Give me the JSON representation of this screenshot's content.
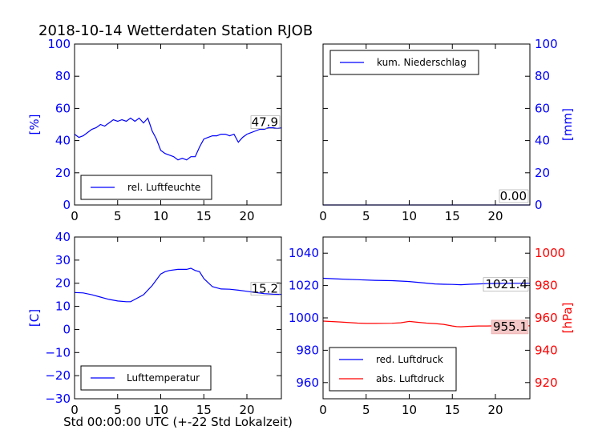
{
  "title": "2018-10-14 Wetterdaten Station RJOB",
  "xlabel": "Std 00:00:00 UTC (+-22 Std Lokalzeit)",
  "colors": {
    "blue": "#0000ff",
    "red": "#ff0000",
    "black": "#000000"
  },
  "chart_data": [
    {
      "type": "line",
      "panel": "top-left",
      "ylabel": "[%]",
      "ylabel_side": "left",
      "ylim": [
        0,
        100
      ],
      "yticks": [
        "0",
        "20",
        "40",
        "60",
        "80",
        "100"
      ],
      "xlim": [
        0,
        24
      ],
      "xticks": [
        "0",
        "5",
        "10",
        "15",
        "20"
      ],
      "legend": {
        "entries": [
          "rel. Luftfeuchte"
        ],
        "placement": "lower-left"
      },
      "last_value": "47.9",
      "series": [
        {
          "name": "rel. Luftfeuchte",
          "color": "#0000ff",
          "x": [
            0,
            0.5,
            1,
            1.5,
            2,
            2.5,
            3,
            3.5,
            4,
            4.5,
            5,
            5.5,
            6,
            6.5,
            7,
            7.5,
            8,
            8.5,
            9,
            9.5,
            10,
            10.5,
            11,
            11.5,
            12,
            12.5,
            13,
            13.5,
            14,
            14.5,
            15,
            15.5,
            16,
            16.5,
            17,
            17.5,
            18,
            18.5,
            19,
            19.5,
            20,
            20.5,
            21,
            21.5,
            22,
            22.5,
            23,
            23.5,
            24
          ],
          "values": [
            44,
            42,
            43,
            45,
            47,
            48,
            50,
            49,
            51,
            53,
            52,
            53,
            52,
            54,
            52,
            54,
            51,
            54,
            46,
            41,
            34,
            32,
            31,
            30,
            28,
            29,
            28,
            30,
            30,
            36,
            41,
            42,
            43,
            43,
            44,
            44,
            43,
            44,
            39,
            42,
            44,
            45,
            46,
            47,
            47,
            48,
            48,
            47.5,
            47.9
          ]
        }
      ]
    },
    {
      "type": "line",
      "panel": "top-right",
      "ylabel": "[mm]",
      "ylabel_side": "right",
      "ylim": [
        0,
        100
      ],
      "yticks": [
        "0",
        "20",
        "40",
        "60",
        "80",
        "100"
      ],
      "xlim": [
        0,
        24
      ],
      "xticks": [
        "0",
        "5",
        "10",
        "15",
        "20"
      ],
      "legend": {
        "entries": [
          "kum. Niederschlag"
        ],
        "placement": "upper-left"
      },
      "last_value": "0.00",
      "series": [
        {
          "name": "kum. Niederschlag",
          "color": "#0000ff",
          "x": [
            0,
            24
          ],
          "values": [
            0,
            0
          ]
        }
      ]
    },
    {
      "type": "line",
      "panel": "bottom-left",
      "ylabel": "[C]",
      "ylabel_side": "left",
      "ylim": [
        -30,
        40
      ],
      "yticks": [
        "−30",
        "−20",
        "−10",
        "0",
        "10",
        "20",
        "30",
        "40"
      ],
      "xlim": [
        0,
        24
      ],
      "xticks": [
        "0",
        "5",
        "10",
        "15",
        "20"
      ],
      "legend": {
        "entries": [
          "Lufttemperatur"
        ],
        "placement": "lower-left"
      },
      "last_value": "15.2",
      "series": [
        {
          "name": "Lufttemperatur",
          "color": "#0000ff",
          "x": [
            0,
            1,
            2,
            3,
            4,
            5,
            6,
            6.5,
            7,
            8,
            9,
            10,
            10.5,
            11,
            12,
            13,
            13.5,
            14,
            14.5,
            15,
            16,
            17,
            18,
            19,
            20,
            21,
            22,
            23,
            24
          ],
          "values": [
            16,
            15.8,
            15,
            14,
            13,
            12.3,
            12,
            12,
            13,
            15,
            19,
            24,
            25,
            25.5,
            26,
            26,
            26.5,
            25.5,
            25,
            22,
            18.5,
            17.5,
            17.4,
            17,
            16.5,
            16,
            15.5,
            15.3,
            15.2
          ]
        }
      ]
    },
    {
      "type": "line",
      "panel": "bottom-right",
      "ylabel": "[hPa]",
      "ylabel_side": "right",
      "ylim_left": [
        950,
        1050
      ],
      "ylim_right": [
        910,
        1010
      ],
      "yticks_left": [
        "960",
        "980",
        "1000",
        "1020",
        "1040"
      ],
      "yticks_right": [
        "920",
        "940",
        "960",
        "980",
        "1000"
      ],
      "xlim": [
        0,
        24
      ],
      "xticks": [
        "0",
        "5",
        "10",
        "15",
        "20"
      ],
      "legend": {
        "entries": [
          "red. Luftdruck",
          "abs. Luftdruck"
        ],
        "placement": "lower-left"
      },
      "last_values": [
        "1021.4",
        "955.1"
      ],
      "series": [
        {
          "name": "red. Luftdruck",
          "color": "#0000ff",
          "axis": "left",
          "x": [
            0,
            2,
            4,
            6,
            8,
            10,
            11,
            12,
            13,
            14,
            15,
            16,
            17,
            18,
            19,
            20,
            22,
            24
          ],
          "values": [
            1024.5,
            1024,
            1023.6,
            1023.2,
            1023,
            1022.5,
            1022,
            1021.5,
            1021,
            1020.8,
            1020.7,
            1020.5,
            1020.8,
            1021,
            1021.2,
            1021.3,
            1021.4,
            1021.4
          ]
        },
        {
          "name": "abs. Luftdruck",
          "color": "#ff0000",
          "axis": "right",
          "x": [
            0,
            2,
            4,
            5,
            6,
            8,
            9,
            10,
            11,
            12,
            13,
            14,
            15,
            15.5,
            16,
            17,
            18,
            19,
            20,
            22,
            24
          ],
          "values": [
            958,
            957.5,
            956.8,
            956.6,
            956.6,
            956.7,
            957,
            957.8,
            957.3,
            956.8,
            956.5,
            956,
            955,
            954.6,
            954.5,
            954.8,
            955,
            955,
            955.1,
            955.1,
            955.1
          ]
        }
      ]
    }
  ]
}
